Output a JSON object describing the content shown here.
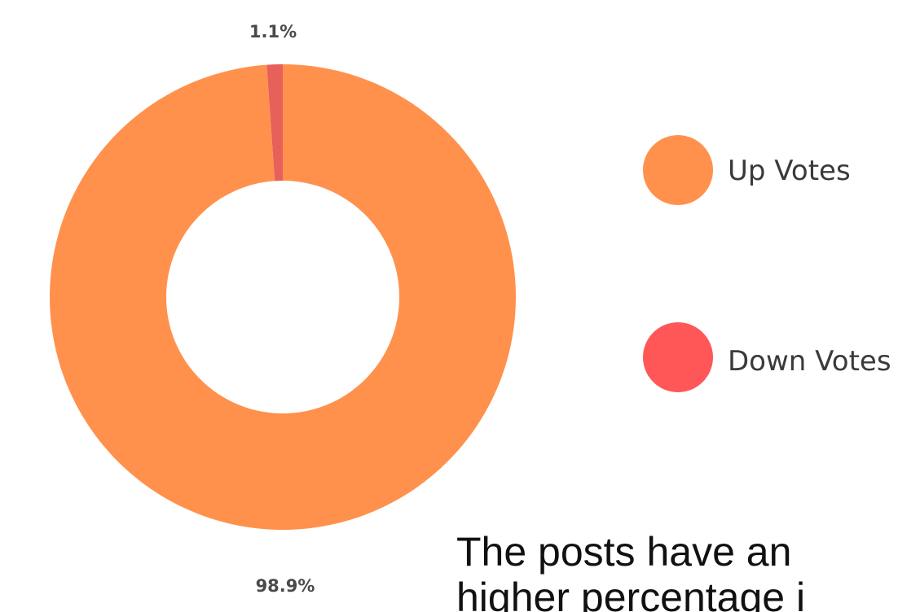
{
  "chart_data": {
    "type": "pie",
    "donut": true,
    "title": "",
    "categories": [
      "Up Votes",
      "Down Votes"
    ],
    "values": [
      98.9,
      1.1
    ],
    "colors": [
      "#ff914d",
      "#e8605a"
    ],
    "data_labels": [
      "98.9%",
      "1.1%"
    ],
    "legend": {
      "placement": "right",
      "entries": [
        {
          "label": "Up Votes",
          "color": "#ff914d"
        },
        {
          "label": "Down Votes",
          "color": "#ff5757"
        }
      ]
    }
  },
  "caption": {
    "line1": "The posts have an",
    "line2": "higher percentage i"
  }
}
